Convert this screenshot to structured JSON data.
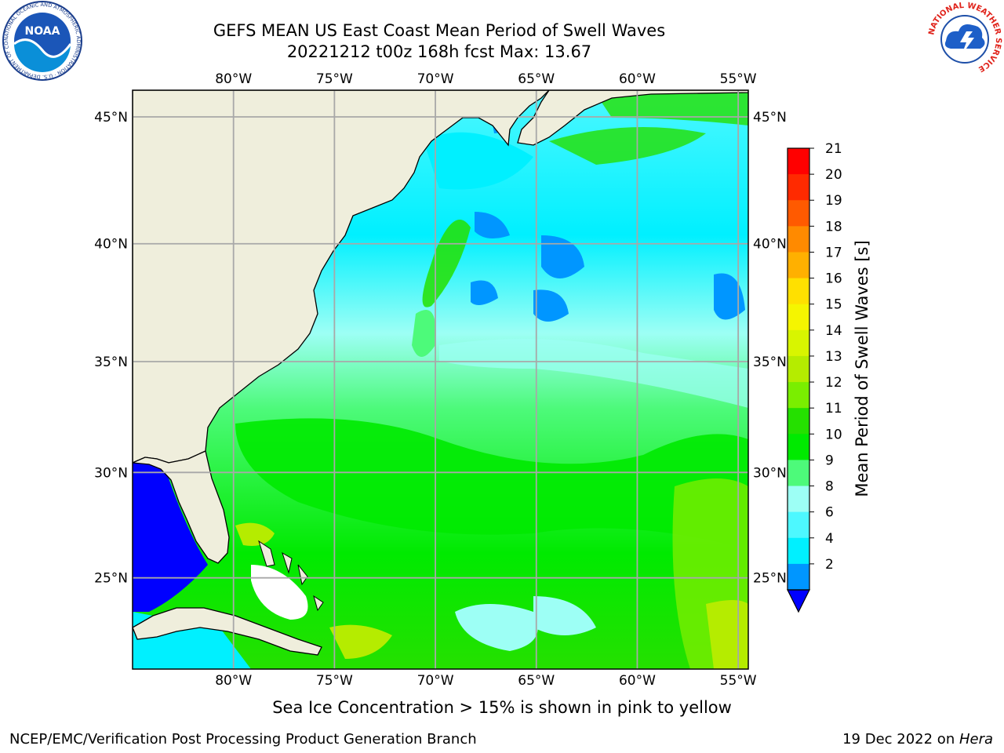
{
  "title": {
    "line1": "GEFS MEAN US East Coast Mean Period of Swell Waves",
    "line2": "20221212 t00z 168h fcst   Max: 13.67"
  },
  "map": {
    "lon_labels": [
      "80°W",
      "75°W",
      "70°W",
      "65°W",
      "60°W",
      "55°W"
    ],
    "lat_labels": [
      "45°N",
      "40°N",
      "35°N",
      "30°N",
      "25°N"
    ],
    "lon_values": [
      -80,
      -75,
      -70,
      -65,
      -60,
      -55
    ],
    "lat_values": [
      45,
      40,
      35,
      30,
      25
    ],
    "extent": {
      "lon_min": -85,
      "lon_max": -54.5,
      "lat_min": 20.5,
      "lat_max": 46
    },
    "land_color": "#efeedc",
    "grid": true
  },
  "colorbar": {
    "label": "Mean Period of Swell Waves [s]",
    "ticks": [
      "21",
      "20",
      "19",
      "18",
      "17",
      "16",
      "15",
      "14",
      "13",
      "12",
      "11",
      "10",
      "9",
      "8",
      "6",
      "4",
      "2"
    ],
    "colors": [
      "#ff0000",
      "#ff2a00",
      "#ff5a00",
      "#ff8a00",
      "#ffb000",
      "#ffe000",
      "#f5f500",
      "#d8f500",
      "#b5ec00",
      "#7aee00",
      "#25e000",
      "#00ea00",
      "#4dfa7a",
      "#9dfff5",
      "#4df8ff",
      "#00f0ff",
      "#0096ff",
      "#0000ff"
    ]
  },
  "logos": {
    "noaa_text": "NOAA",
    "noaa_ring": "NATIONAL OCEANIC AND ATMOSPHERIC ADMINISTRATION · U.S. DEPARTMENT OF COMMERCE",
    "nws_ring": "NATIONAL WEATHER SERVICE"
  },
  "note": "Sea Ice Concentration > 15% is shown in pink to yellow",
  "footer": {
    "left": "NCEP/EMC/Verification Post Processing Product Generation Branch",
    "date": "19 Dec 2022 on ",
    "machine": "Hera"
  }
}
